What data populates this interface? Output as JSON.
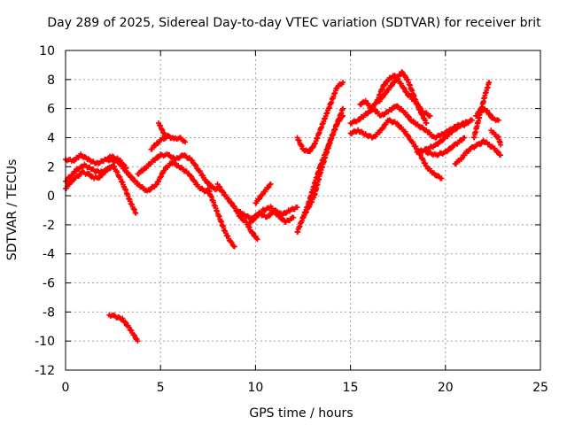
{
  "chart_data": {
    "type": "scatter",
    "title": "Day 289 of 2025, Sidereal Day-to-day VTEC variation (SDTVAR) for receiver brit",
    "xlabel": "GPS time / hours",
    "ylabel": "SDTVAR / TECUs",
    "xlim": [
      0,
      25
    ],
    "ylim": [
      -12,
      10
    ],
    "xticks": [
      "0",
      "5",
      "10",
      "15",
      "20",
      "25"
    ],
    "yticks": [
      "-12",
      "-10",
      "-8",
      "-6",
      "-4",
      "-2",
      "0",
      "2",
      "4",
      "6",
      "8",
      "10"
    ],
    "grid": true,
    "marker": "+",
    "color": "#ff0000",
    "series": [
      {
        "name": "s1",
        "x": [
          0,
          0.3,
          0.6,
          1,
          1.4,
          1.8,
          2.2,
          2.5,
          2.8,
          3.1,
          3.4,
          3.7
        ],
        "y": [
          1.0,
          1.4,
          1.8,
          2.1,
          1.8,
          1.6,
          1.8,
          2.1,
          1.4,
          0.6,
          -0.4,
          -1.2
        ]
      },
      {
        "name": "s2",
        "x": [
          0,
          0.4,
          0.8,
          1.2,
          1.6,
          2,
          2.4,
          2.8,
          3.2
        ],
        "y": [
          2.5,
          2.4,
          2.8,
          2.5,
          2.2,
          2.4,
          2.7,
          2.5,
          1.9
        ]
      },
      {
        "name": "s3",
        "x": [
          0,
          0.3,
          0.6,
          0.9,
          1.2,
          1.5,
          1.8,
          2.1,
          2.4
        ],
        "y": [
          0.5,
          1.0,
          1.3,
          1.6,
          1.5,
          1.2,
          1.3,
          1.7,
          2.0
        ]
      },
      {
        "name": "s4",
        "x": [
          2.2,
          2.8,
          3.3,
          3.8,
          4.3,
          4.8,
          5.2,
          5.6,
          6.0,
          6.5,
          7.0,
          7.5
        ],
        "y": [
          2.5,
          2.3,
          1.5,
          0.8,
          0.3,
          0.8,
          1.8,
          2.3,
          2.0,
          1.5,
          0.6,
          0.2
        ]
      },
      {
        "name": "s5",
        "x": [
          3.8,
          4.2,
          4.6,
          5.0,
          5.4,
          5.8,
          6.2,
          6.6,
          7.0,
          7.4,
          7.8,
          8.2
        ],
        "y": [
          1.5,
          1.9,
          2.4,
          2.8,
          2.8,
          2.5,
          2.8,
          2.5,
          1.8,
          1.0,
          0.5,
          0.4
        ]
      },
      {
        "name": "s6",
        "x": [
          4.5,
          4.8,
          5.1,
          5.4,
          5.7,
          6.0,
          6.3
        ],
        "y": [
          3.2,
          3.6,
          3.9,
          4.1,
          3.9,
          4.0,
          3.7
        ]
      },
      {
        "name": "s7",
        "x": [
          4.9,
          5.1,
          5.3
        ],
        "y": [
          5.0,
          4.5,
          4.0
        ]
      },
      {
        "name": "s8",
        "x": [
          7.5,
          7.8,
          8.1,
          8.4,
          8.7,
          8.9
        ],
        "y": [
          0.5,
          -0.5,
          -1.5,
          -2.5,
          -3.2,
          -3.5
        ]
      },
      {
        "name": "s9",
        "x": [
          8.0,
          8.3,
          8.6,
          8.9,
          9.2,
          9.5,
          9.8,
          10.1
        ],
        "y": [
          0.8,
          0.2,
          -0.3,
          -0.8,
          -1.5,
          -1.8,
          -2.5,
          -3.0
        ]
      },
      {
        "name": "s10",
        "x": [
          9.0,
          9.4,
          9.8,
          10.2,
          10.6,
          11.0,
          11.4,
          11.8,
          12.2
        ],
        "y": [
          -1.0,
          -1.3,
          -1.6,
          -1.2,
          -1.5,
          -1.0,
          -1.3,
          -1.0,
          -0.8
        ]
      },
      {
        "name": "s11",
        "x": [
          9.6,
          10.0,
          10.4,
          10.8,
          11.2,
          11.6,
          12.0
        ],
        "y": [
          -2.0,
          -1.5,
          -1.0,
          -0.8,
          -1.4,
          -1.8,
          -1.5
        ]
      },
      {
        "name": "s12",
        "x": [
          10.0,
          10.3,
          10.6,
          10.8
        ],
        "y": [
          -0.5,
          0.0,
          0.5,
          0.8
        ]
      },
      {
        "name": "s13",
        "x": [
          12.2,
          12.5,
          12.8,
          13.1,
          13.4,
          13.7,
          14.0,
          14.3,
          14.6
        ],
        "y": [
          -2.5,
          -1.5,
          -0.5,
          0.8,
          2.0,
          3.0,
          4.0,
          5.0,
          6.0
        ]
      },
      {
        "name": "s14",
        "x": [
          12.5,
          12.8,
          13.1,
          13.4,
          13.7,
          14.0,
          14.3,
          14.6
        ],
        "y": [
          -1.5,
          -0.8,
          0.0,
          1.5,
          2.8,
          4.0,
          5.0,
          5.5
        ]
      },
      {
        "name": "s15",
        "x": [
          12.2,
          12.5,
          12.8,
          13.1,
          13.4,
          13.7,
          14.0,
          14.3,
          14.6
        ],
        "y": [
          4.0,
          3.2,
          3.0,
          3.5,
          4.5,
          5.5,
          6.5,
          7.5,
          7.8
        ]
      },
      {
        "name": "s16",
        "x": [
          15.0,
          15.4,
          15.8,
          16.2,
          16.6,
          17.0,
          17.4,
          17.8,
          18.2,
          18.6,
          19.0,
          19.4,
          19.8
        ],
        "y": [
          4.3,
          4.5,
          4.2,
          4.0,
          4.5,
          5.2,
          5.0,
          4.5,
          3.8,
          3.0,
          2.0,
          1.5,
          1.2
        ]
      },
      {
        "name": "s17",
        "x": [
          15.0,
          15.4,
          15.8,
          16.2,
          16.6,
          17.0,
          17.4,
          17.8,
          18.2,
          18.6,
          19.0,
          19.4,
          19.8,
          20.2,
          20.6,
          21.0,
          21.4
        ],
        "y": [
          5.0,
          5.2,
          5.6,
          6.0,
          5.5,
          5.8,
          6.2,
          5.8,
          5.2,
          4.8,
          4.5,
          4.0,
          4.2,
          4.5,
          4.8,
          5.0,
          5.2
        ]
      },
      {
        "name": "s18",
        "x": [
          15.5,
          15.8,
          16.1,
          16.4,
          16.7,
          17.0,
          17.3,
          17.6,
          18.0,
          18.4,
          18.8,
          19.2
        ],
        "y": [
          6.3,
          6.5,
          6.0,
          6.5,
          7.5,
          8.0,
          8.3,
          7.8,
          7.0,
          6.5,
          5.8,
          5.5
        ]
      },
      {
        "name": "s19",
        "x": [
          16.5,
          16.8,
          17.1,
          17.4,
          17.7,
          18.0,
          18.3,
          18.6,
          19.0
        ],
        "y": [
          6.5,
          7.0,
          7.5,
          8.0,
          8.5,
          8.0,
          7.0,
          6.0,
          5.0
        ]
      },
      {
        "name": "s20",
        "x": [
          18.5,
          19.0,
          19.5,
          20.0,
          20.4,
          20.8,
          21.2
        ],
        "y": [
          3.0,
          3.2,
          3.5,
          4.0,
          4.5,
          4.8,
          5.0
        ]
      },
      {
        "name": "s21",
        "x": [
          19.0,
          19.5,
          20.0,
          20.5,
          21.0
        ],
        "y": [
          3.0,
          2.8,
          3.0,
          3.5,
          4.0
        ]
      },
      {
        "name": "s22",
        "x": [
          20.5,
          20.8,
          21.1,
          21.4,
          21.7,
          22.0
        ],
        "y": [
          2.2,
          2.5,
          3.0,
          3.3,
          3.5,
          3.7
        ]
      },
      {
        "name": "s23",
        "x": [
          21.5,
          21.7,
          21.9,
          22.1,
          22.3
        ],
        "y": [
          4.0,
          5.0,
          6.0,
          7.0,
          7.8
        ]
      },
      {
        "name": "s24",
        "x": [
          21.6,
          21.9,
          22.2,
          22.5,
          22.8
        ],
        "y": [
          5.5,
          6.0,
          5.8,
          5.3,
          5.2
        ]
      },
      {
        "name": "s25",
        "x": [
          22.0,
          22.3,
          22.6,
          22.9
        ],
        "y": [
          3.8,
          3.5,
          3.2,
          2.8
        ]
      },
      {
        "name": "s26",
        "x": [
          22.4,
          22.6,
          22.8,
          22.9
        ],
        "y": [
          4.5,
          4.2,
          4.0,
          3.5
        ]
      },
      {
        "name": "s27",
        "x": [
          2.3,
          2.6,
          3.0,
          3.3,
          3.6,
          3.8
        ],
        "y": [
          -8.2,
          -8.3,
          -8.5,
          -9.0,
          -9.6,
          -10.0
        ]
      }
    ]
  }
}
